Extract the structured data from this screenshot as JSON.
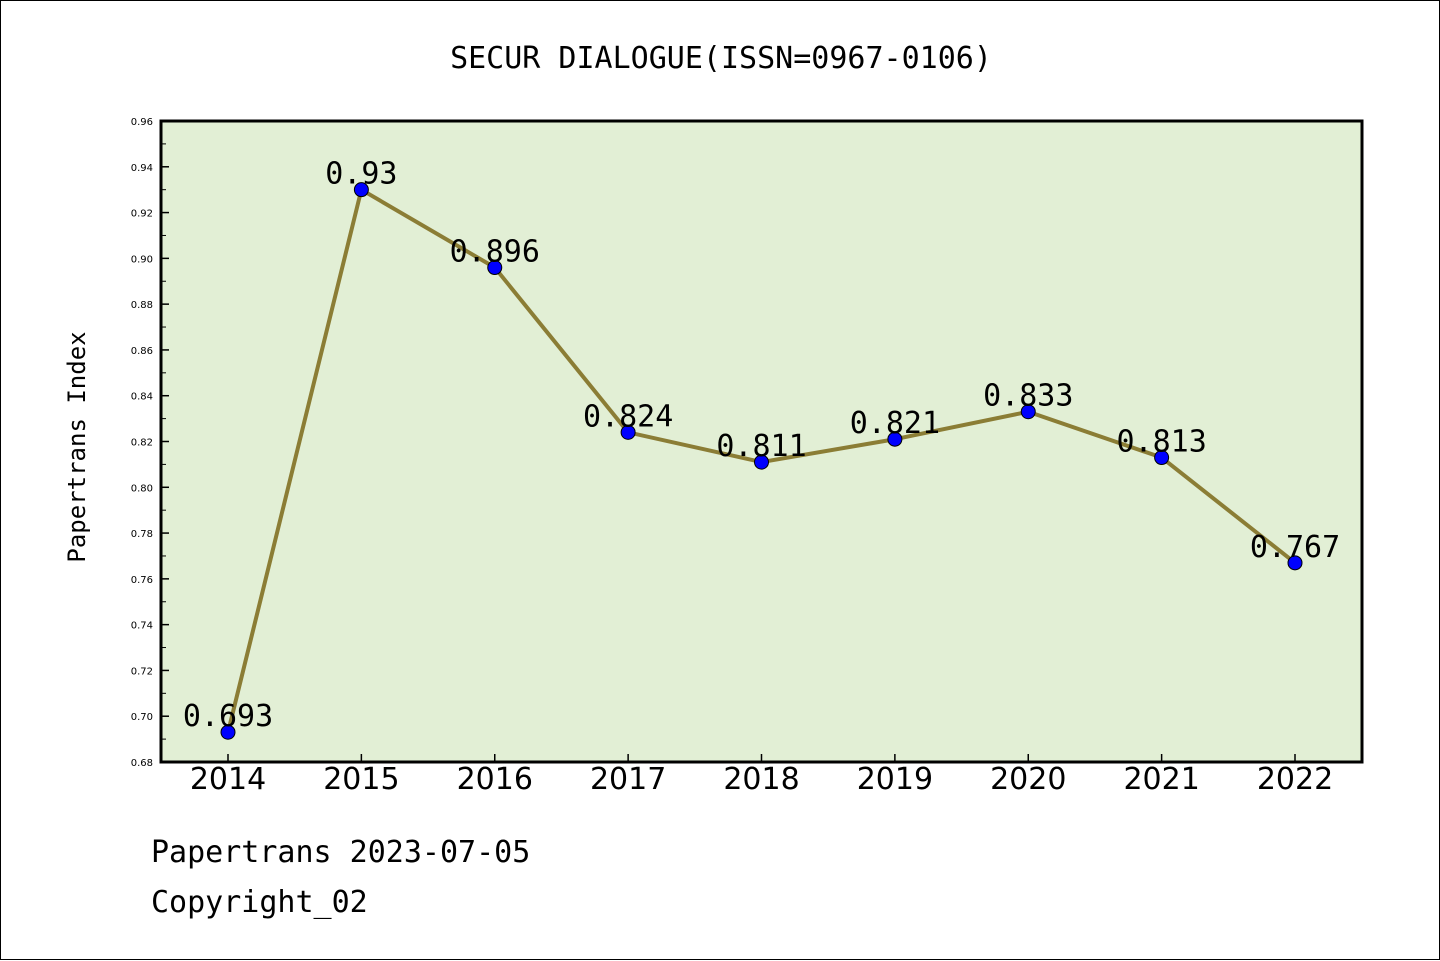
{
  "chart_data": {
    "type": "line",
    "title": "SECUR DIALOGUE(ISSN=0967-0106)",
    "xlabel": "",
    "ylabel": "Papertrans Index",
    "categories": [
      "2014",
      "2015",
      "2016",
      "2017",
      "2018",
      "2019",
      "2020",
      "2021",
      "2022"
    ],
    "series": [
      {
        "values": [
          0.693,
          0.93,
          0.896,
          0.824,
          0.811,
          0.821,
          0.833,
          0.813,
          0.767
        ]
      }
    ],
    "data_labels": [
      "0.693",
      "0.93",
      "0.896",
      "0.824",
      "0.811",
      "0.821",
      "0.833",
      "0.813",
      "0.767"
    ],
    "ylim": [
      0.68,
      0.96
    ],
    "yticks": [
      "0.68",
      "0.70",
      "0.72",
      "0.74",
      "0.76",
      "0.78",
      "0.80",
      "0.82",
      "0.84",
      "0.86",
      "0.88",
      "0.90",
      "0.92",
      "0.94",
      "0.96"
    ],
    "grid": false,
    "legend": "none",
    "colors": {
      "plot_background": "#e2efd5",
      "line": "#8b7d35",
      "marker": "#0000ff",
      "axis": "#000000"
    }
  },
  "footer": {
    "line1": "Papertrans 2023-07-05",
    "line2": "Copyright_02"
  }
}
